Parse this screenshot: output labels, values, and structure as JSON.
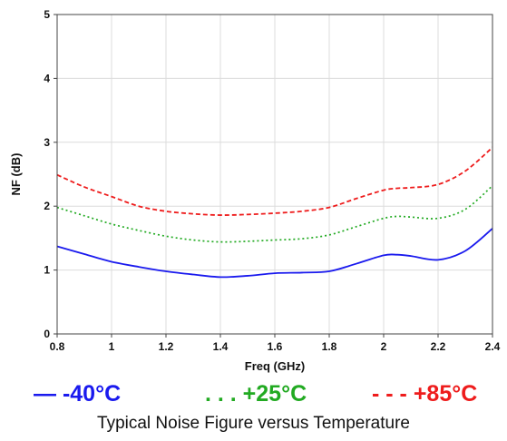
{
  "chart_data": {
    "type": "line",
    "title": "",
    "xlabel": "Freq (GHz)",
    "ylabel": "NF (dB)",
    "xlim": [
      0.8,
      2.4
    ],
    "ylim": [
      0,
      5
    ],
    "xticks": [
      "0.8",
      "1",
      "1.2",
      "1.4",
      "1.6",
      "1.8",
      "2",
      "2.2",
      "2.4"
    ],
    "yticks": [
      "0",
      "1",
      "2",
      "3",
      "4",
      "5"
    ],
    "grid": true,
    "legend_position": "bottom",
    "series": [
      {
        "name": "-40°C",
        "legend_text": "— -40°C",
        "color": "#1a1aee",
        "dash": "solid",
        "x": [
          0.8,
          0.9,
          1.0,
          1.1,
          1.2,
          1.3,
          1.4,
          1.5,
          1.6,
          1.7,
          1.8,
          1.9,
          2.0,
          2.05,
          2.1,
          2.2,
          2.3,
          2.4
        ],
        "y": [
          1.37,
          1.25,
          1.13,
          1.05,
          0.98,
          0.93,
          0.89,
          0.91,
          0.95,
          0.96,
          0.98,
          1.1,
          1.23,
          1.24,
          1.22,
          1.16,
          1.3,
          1.65
        ]
      },
      {
        "name": "+25°C",
        "legend_text": ". . . +25°C",
        "color": "#22aa22",
        "dash": "dotted",
        "x": [
          0.8,
          0.9,
          1.0,
          1.1,
          1.2,
          1.3,
          1.4,
          1.5,
          1.6,
          1.7,
          1.8,
          1.9,
          2.0,
          2.05,
          2.1,
          2.2,
          2.3,
          2.4
        ],
        "y": [
          1.98,
          1.85,
          1.72,
          1.62,
          1.53,
          1.47,
          1.44,
          1.45,
          1.47,
          1.49,
          1.55,
          1.68,
          1.81,
          1.84,
          1.83,
          1.81,
          1.95,
          2.32
        ]
      },
      {
        "name": "+85°C",
        "legend_text": "- - - +85°C",
        "color": "#ee1c1c",
        "dash": "dashed",
        "x": [
          0.8,
          0.9,
          1.0,
          1.1,
          1.2,
          1.3,
          1.4,
          1.5,
          1.6,
          1.7,
          1.8,
          1.9,
          2.0,
          2.05,
          2.1,
          2.2,
          2.3,
          2.4
        ],
        "y": [
          2.49,
          2.3,
          2.15,
          2.0,
          1.92,
          1.88,
          1.86,
          1.87,
          1.89,
          1.92,
          1.98,
          2.12,
          2.25,
          2.28,
          2.29,
          2.34,
          2.55,
          2.92
        ]
      }
    ]
  },
  "caption": "Typical Noise Figure versus Temperature"
}
